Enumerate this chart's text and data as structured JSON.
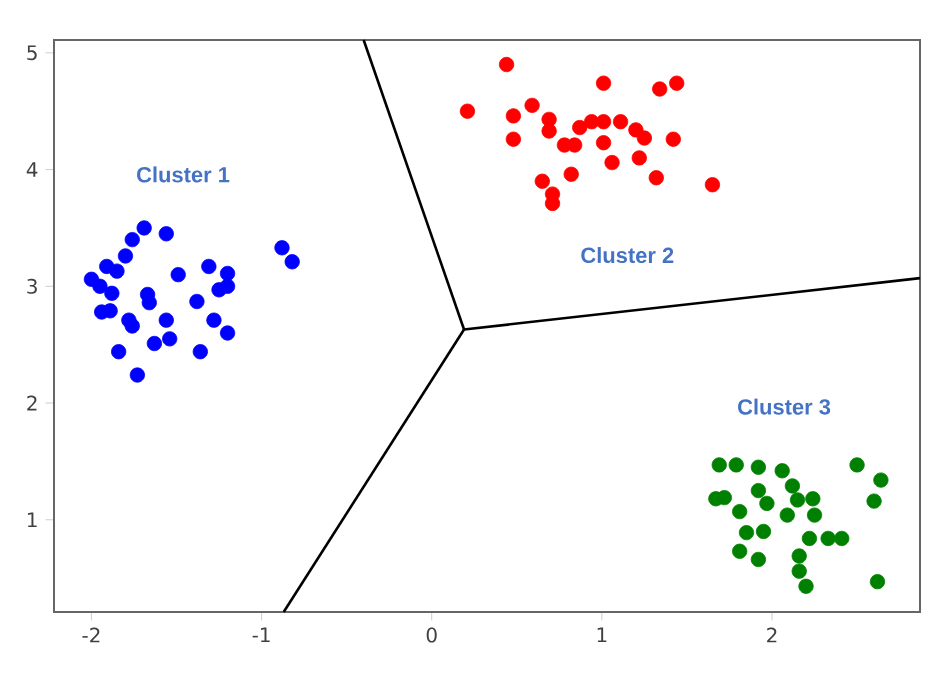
{
  "chart_data": {
    "type": "scatter",
    "xlim": [
      -2.22,
      2.87
    ],
    "ylim": [
      0.21,
      5.11
    ],
    "xticks": [
      -2,
      -1,
      0,
      1,
      2
    ],
    "yticks": [
      1,
      2,
      3,
      4,
      5
    ],
    "grid": false,
    "annotations": [
      "Cluster 1",
      "Cluster 2",
      "Cluster 3"
    ],
    "series": [
      {
        "marker": "circle",
        "color": "#0000ff",
        "x": [
          -2.0,
          -1.91,
          -1.85,
          -1.8,
          -1.76,
          -1.69,
          -1.56,
          -1.95,
          -1.88,
          -1.94,
          -1.89,
          -1.78,
          -1.76,
          -1.67,
          -1.66,
          -1.84,
          -1.73,
          -1.63,
          -1.56,
          -1.54,
          -1.49,
          -1.38,
          -1.31,
          -1.28,
          -1.36,
          -1.2,
          -1.25,
          -1.2,
          -1.2,
          -0.88,
          -0.82
        ],
        "values": [
          3.06,
          3.17,
          3.13,
          3.26,
          3.4,
          3.5,
          3.45,
          3.0,
          2.94,
          2.78,
          2.79,
          2.71,
          2.66,
          2.93,
          2.86,
          2.44,
          2.24,
          2.51,
          2.71,
          2.55,
          3.1,
          2.87,
          3.17,
          2.71,
          2.44,
          3.11,
          2.97,
          3.0,
          2.6,
          3.33,
          3.21
        ]
      },
      {
        "marker": "circle",
        "color": "#ff0000",
        "x": [
          0.21,
          0.44,
          0.48,
          0.48,
          0.59,
          0.69,
          0.69,
          0.78,
          0.84,
          0.87,
          0.94,
          1.01,
          1.11,
          1.2,
          1.25,
          1.01,
          1.34,
          1.44,
          1.42,
          1.65,
          1.32,
          1.22,
          1.06,
          1.01,
          0.82,
          0.65,
          0.71,
          0.71
        ],
        "values": [
          4.5,
          4.9,
          4.46,
          4.26,
          4.55,
          4.43,
          4.33,
          4.21,
          4.21,
          4.36,
          4.41,
          4.41,
          4.41,
          4.34,
          4.27,
          4.74,
          4.69,
          4.74,
          4.26,
          3.87,
          3.93,
          4.1,
          4.06,
          4.23,
          3.96,
          3.9,
          3.79,
          3.71
        ]
      },
      {
        "marker": "circle",
        "color": "#008000",
        "x": [
          1.69,
          1.79,
          1.92,
          2.06,
          2.5,
          2.64,
          2.6,
          1.67,
          1.72,
          1.92,
          1.97,
          1.81,
          1.85,
          1.81,
          1.95,
          1.92,
          2.12,
          2.15,
          2.09,
          2.24,
          2.25,
          2.22,
          2.33,
          2.41,
          2.16,
          2.16,
          2.2,
          2.62
        ],
        "values": [
          1.47,
          1.47,
          1.45,
          1.42,
          1.47,
          1.34,
          1.16,
          1.18,
          1.19,
          1.25,
          1.14,
          1.07,
          0.89,
          0.73,
          0.9,
          0.66,
          1.29,
          1.17,
          1.04,
          1.18,
          1.04,
          0.84,
          0.84,
          0.84,
          0.69,
          0.56,
          0.43,
          0.47
        ]
      },
      {
        "type": "line",
        "marker": "none",
        "color": "#000000",
        "x": [
          0.19,
          -0.4
        ],
        "values": [
          2.63,
          5.11
        ]
      },
      {
        "type": "line",
        "marker": "none",
        "color": "#000000",
        "x": [
          0.19,
          2.87
        ],
        "values": [
          2.63,
          3.07
        ]
      },
      {
        "type": "line",
        "marker": "none",
        "color": "#000000",
        "x": [
          0.19,
          -0.87
        ],
        "values": [
          2.63,
          0.21
        ]
      }
    ]
  }
}
